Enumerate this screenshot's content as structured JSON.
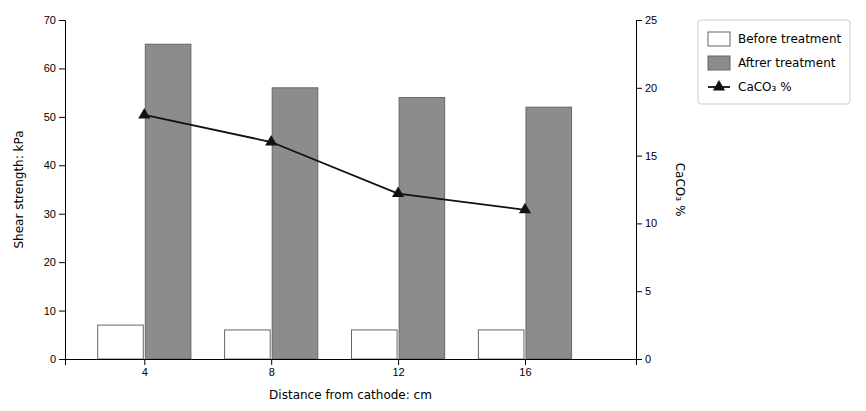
{
  "chart_data": {
    "type": "bar",
    "xlabel": "Distance from cathode: cm",
    "ylabel": "Shear strength: kPa",
    "y2label": "CaCO₃ %",
    "x": [
      4,
      8,
      12,
      16
    ],
    "xlim": [
      1.5,
      19.5
    ],
    "xticks": [
      4,
      8,
      12,
      16
    ],
    "ylim": [
      0,
      70
    ],
    "yticks": [
      0,
      10,
      20,
      30,
      40,
      50,
      60,
      70
    ],
    "y2lim": [
      0,
      25
    ],
    "y2ticks": [
      0,
      5,
      10,
      15,
      20,
      25
    ],
    "grid": false,
    "legend": "right",
    "series": [
      {
        "name": "Before treatment",
        "type": "bar",
        "color": "#ffffff",
        "values": [
          7,
          6,
          6,
          6
        ]
      },
      {
        "name": "Aftrer treatment",
        "type": "bar",
        "color": "#8c8c8c",
        "values": [
          65,
          56,
          54,
          52
        ]
      },
      {
        "name": "CaCO₃ %",
        "type": "line",
        "axis": "y2",
        "color": "#111111",
        "marker": "triangle",
        "values": [
          18,
          16,
          12.2,
          11
        ]
      }
    ]
  }
}
